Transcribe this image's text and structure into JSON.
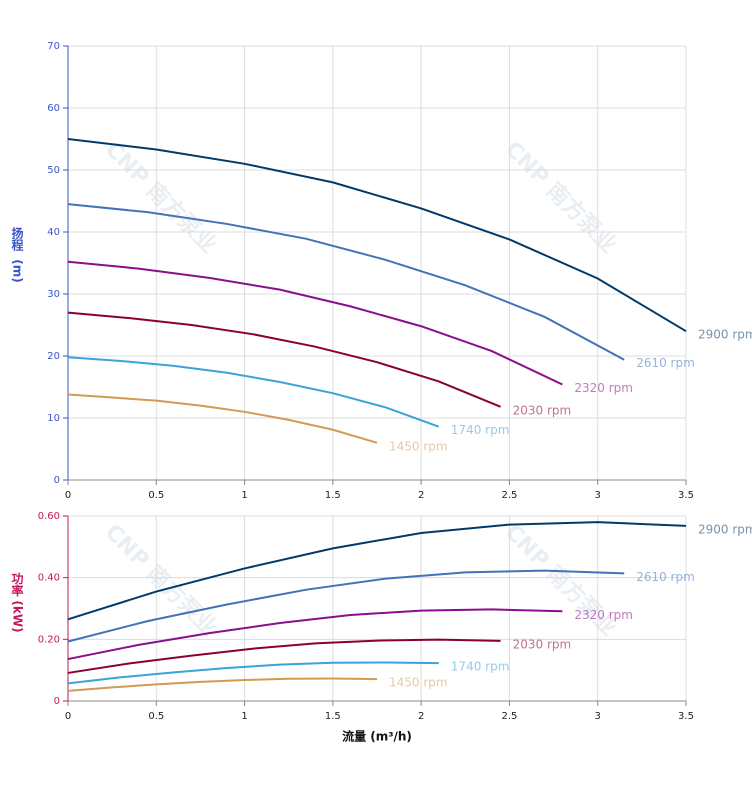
{
  "watermark": "CNP 南方泵业",
  "chart_data": [
    {
      "type": "line",
      "y_label": "扬程",
      "y_unit": "(m)",
      "axis_color": "#3a55c8",
      "xlim": [
        0,
        3.5
      ],
      "xticks": [
        0,
        0.5,
        1,
        1.5,
        2,
        2.5,
        3,
        3.5
      ],
      "ylim": [
        0,
        70
      ],
      "yticks": [
        0,
        10,
        20,
        30,
        40,
        50,
        60,
        70
      ],
      "grid": true,
      "series": [
        {
          "name": "2900 rpm",
          "color": "#003a6b",
          "x": [
            0,
            0.5,
            1,
            1.5,
            2,
            2.5,
            3,
            3.5
          ],
          "values": [
            55,
            53.3,
            51,
            48,
            43.8,
            38.8,
            32.5,
            24
          ]
        },
        {
          "name": "2610 rpm",
          "color": "#4472b8",
          "x": [
            0,
            0.45,
            0.9,
            1.35,
            1.8,
            2.25,
            2.7,
            3.15
          ],
          "values": [
            44.5,
            43.2,
            41.3,
            38.9,
            35.5,
            31.4,
            26.3,
            19.4
          ]
        },
        {
          "name": "2320 rpm",
          "color": "#8b0f8b",
          "x": [
            0,
            0.4,
            0.8,
            1.2,
            1.6,
            2,
            2.4,
            2.8
          ],
          "values": [
            35.2,
            34.1,
            32.6,
            30.7,
            28,
            24.8,
            20.8,
            15.4
          ]
        },
        {
          "name": "2030 rpm",
          "color": "#8b0032",
          "x": [
            0,
            0.35,
            0.7,
            1.05,
            1.4,
            1.75,
            2.1,
            2.45
          ],
          "values": [
            27,
            26.1,
            25,
            23.5,
            21.5,
            19,
            15.9,
            11.8
          ]
        },
        {
          "name": "1740 rpm",
          "color": "#3aa3d8",
          "x": [
            0,
            0.3,
            0.6,
            0.9,
            1.2,
            1.5,
            1.8,
            2.1
          ],
          "values": [
            19.8,
            19.2,
            18.4,
            17.3,
            15.8,
            14,
            11.7,
            8.6
          ]
        },
        {
          "name": "1450 rpm",
          "color": "#d49a55",
          "x": [
            0,
            0.25,
            0.5,
            0.75,
            1,
            1.25,
            1.5,
            1.75
          ],
          "values": [
            13.8,
            13.3,
            12.8,
            12,
            11,
            9.7,
            8.1,
            6
          ]
        }
      ]
    },
    {
      "type": "line",
      "y_label": "功率",
      "y_unit": "(kW)",
      "axis_color": "#c2185b",
      "x_label": "流量 (m³/h)",
      "xlim": [
        0,
        3.5
      ],
      "xticks": [
        0,
        0.5,
        1,
        1.5,
        2,
        2.5,
        3,
        3.5
      ],
      "ylim": [
        0,
        0.6
      ],
      "yticks": [
        0,
        {
          "value": 0.2,
          "label": "0.20"
        },
        {
          "value": 0.4,
          "label": "0.40"
        },
        {
          "value": 0.6,
          "label": "0.60"
        }
      ],
      "grid": true,
      "series": [
        {
          "name": "2900 rpm",
          "color": "#003a6b",
          "x": [
            0,
            0.5,
            1,
            1.5,
            2,
            2.5,
            3,
            3.5
          ],
          "values": [
            0.265,
            0.355,
            0.43,
            0.495,
            0.545,
            0.572,
            0.58,
            0.568
          ]
        },
        {
          "name": "2610 rpm",
          "color": "#4472b8",
          "x": [
            0,
            0.45,
            0.9,
            1.35,
            1.8,
            2.25,
            2.7,
            3.15
          ],
          "values": [
            0.193,
            0.259,
            0.313,
            0.361,
            0.397,
            0.417,
            0.423,
            0.414
          ]
        },
        {
          "name": "2320 rpm",
          "color": "#8b0f8b",
          "x": [
            0,
            0.4,
            0.8,
            1.2,
            1.6,
            2,
            2.4,
            2.8
          ],
          "values": [
            0.136,
            0.182,
            0.22,
            0.253,
            0.279,
            0.293,
            0.297,
            0.291
          ]
        },
        {
          "name": "2030 rpm",
          "color": "#8b0032",
          "x": [
            0,
            0.35,
            0.7,
            1.05,
            1.4,
            1.75,
            2.1,
            2.45
          ],
          "values": [
            0.091,
            0.122,
            0.147,
            0.17,
            0.187,
            0.196,
            0.199,
            0.195
          ]
        },
        {
          "name": "1740 rpm",
          "color": "#3aa3d8",
          "x": [
            0,
            0.3,
            0.6,
            0.9,
            1.2,
            1.5,
            1.8,
            2.1
          ],
          "values": [
            0.057,
            0.077,
            0.093,
            0.107,
            0.118,
            0.124,
            0.125,
            0.123
          ]
        },
        {
          "name": "1450 rpm",
          "color": "#d49a55",
          "x": [
            0,
            0.25,
            0.5,
            0.75,
            1,
            1.25,
            1.5,
            1.75
          ],
          "values": [
            0.033,
            0.044,
            0.054,
            0.062,
            0.068,
            0.072,
            0.073,
            0.071
          ]
        }
      ]
    }
  ]
}
